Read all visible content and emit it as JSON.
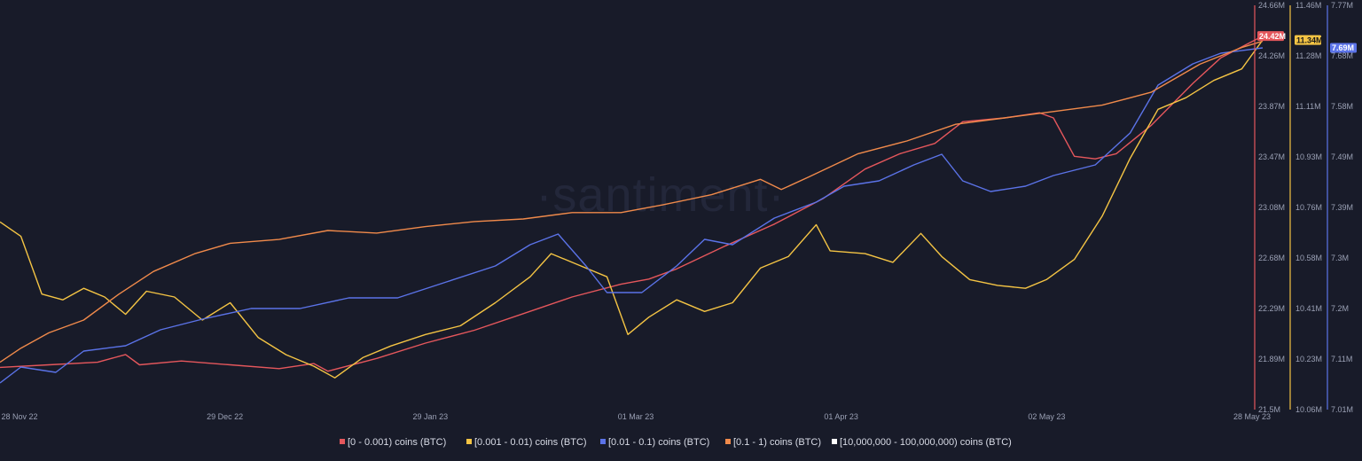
{
  "watermark": "·santiment·",
  "colors": {
    "background": "#181b29",
    "red": "#e5575c",
    "yellow": "#f4c444",
    "blue": "#5b73e8",
    "orange": "#f08a4b",
    "white": "#ffffff"
  },
  "chart_data": {
    "type": "line",
    "x_ticks": [
      "28 Nov 22",
      "29 Dec 22",
      "29 Jan 23",
      "01 Mar 23",
      "01 Apr 23",
      "02 May 23",
      "28 May 23"
    ],
    "x_range": [
      "2022-11-28",
      "2023-05-28"
    ],
    "axes": [
      {
        "id": "red",
        "color": "#e5575c",
        "ticks": [
          "24.66M",
          "24.26M",
          "23.87M",
          "23.47M",
          "23.08M",
          "22.68M",
          "22.29M",
          "21.89M",
          "21.5M"
        ],
        "range": [
          21.5,
          24.66
        ],
        "last_value_label": "24.42M"
      },
      {
        "id": "yellow",
        "color": "#f4c444",
        "ticks": [
          "11.46M",
          "11.28M",
          "11.11M",
          "10.93M",
          "10.76M",
          "10.58M",
          "10.41M",
          "10.23M",
          "10.06M"
        ],
        "range": [
          10.06,
          11.46
        ],
        "last_value_label": "11.34M"
      },
      {
        "id": "blue",
        "color": "#5b73e8",
        "ticks": [
          "7.77M",
          "7.68M",
          "7.58M",
          "7.49M",
          "7.39M",
          "7.3M",
          "7.2M",
          "7.11M",
          "7.01M"
        ],
        "range": [
          7.01,
          7.77
        ],
        "last_value_label": "7.69M"
      }
    ],
    "legend": [
      {
        "label": "[0 - 0.001) coins (BTC)",
        "color": "#e5575c"
      },
      {
        "label": "[0.001 - 0.01) coins (BTC)",
        "color": "#f4c444"
      },
      {
        "label": "[0.01 - 0.1) coins (BTC)",
        "color": "#5b73e8"
      },
      {
        "label": "[0.1 - 1) coins (BTC)",
        "color": "#f08a4b"
      },
      {
        "label": "[10,000,000 - 100,000,000) coins (BTC)",
        "color": "#ffffff"
      }
    ],
    "legend_placement": "bottom",
    "grid": false,
    "series": [
      {
        "name": "[0 - 0.001) coins (BTC)",
        "color": "#e5575c",
        "axis": "red",
        "points": [
          [
            "2022-11-28",
            21.83
          ],
          [
            "2022-12-05",
            21.85
          ],
          [
            "2022-12-12",
            21.87
          ],
          [
            "2022-12-16",
            21.93
          ],
          [
            "2022-12-18",
            21.85
          ],
          [
            "2022-12-24",
            21.88
          ],
          [
            "2022-12-31",
            21.85
          ],
          [
            "2023-01-07",
            21.82
          ],
          [
            "2023-01-12",
            21.86
          ],
          [
            "2023-01-14",
            21.8
          ],
          [
            "2023-01-21",
            21.9
          ],
          [
            "2023-01-28",
            22.02
          ],
          [
            "2023-02-04",
            22.12
          ],
          [
            "2023-02-11",
            22.25
          ],
          [
            "2023-02-18",
            22.38
          ],
          [
            "2023-02-25",
            22.48
          ],
          [
            "2023-03-01",
            22.52
          ],
          [
            "2023-03-05",
            22.6
          ],
          [
            "2023-03-12",
            22.78
          ],
          [
            "2023-03-19",
            22.95
          ],
          [
            "2023-03-26",
            23.15
          ],
          [
            "2023-04-01",
            23.38
          ],
          [
            "2023-04-06",
            23.5
          ],
          [
            "2023-04-11",
            23.58
          ],
          [
            "2023-04-15",
            23.75
          ],
          [
            "2023-04-21",
            23.78
          ],
          [
            "2023-04-26",
            23.82
          ],
          [
            "2023-04-28",
            23.78
          ],
          [
            "2023-05-01",
            23.48
          ],
          [
            "2023-05-04",
            23.46
          ],
          [
            "2023-05-07",
            23.5
          ],
          [
            "2023-05-12",
            23.72
          ],
          [
            "2023-05-18",
            24.05
          ],
          [
            "2023-05-22",
            24.25
          ],
          [
            "2023-05-28",
            24.42
          ]
        ]
      },
      {
        "name": "[0.001 - 0.01) coins (BTC)",
        "color": "#f4c444",
        "axis": "yellow",
        "points": [
          [
            "2022-11-28",
            10.71
          ],
          [
            "2022-12-01",
            10.66
          ],
          [
            "2022-12-04",
            10.46
          ],
          [
            "2022-12-07",
            10.44
          ],
          [
            "2022-12-10",
            10.48
          ],
          [
            "2022-12-13",
            10.45
          ],
          [
            "2022-12-16",
            10.39
          ],
          [
            "2022-12-19",
            10.47
          ],
          [
            "2022-12-23",
            10.45
          ],
          [
            "2022-12-27",
            10.37
          ],
          [
            "2022-12-31",
            10.43
          ],
          [
            "2023-01-04",
            10.31
          ],
          [
            "2023-01-08",
            10.25
          ],
          [
            "2023-01-12",
            10.21
          ],
          [
            "2023-01-15",
            10.17
          ],
          [
            "2023-01-19",
            10.24
          ],
          [
            "2023-01-23",
            10.28
          ],
          [
            "2023-01-28",
            10.32
          ],
          [
            "2023-02-02",
            10.35
          ],
          [
            "2023-02-07",
            10.43
          ],
          [
            "2023-02-12",
            10.52
          ],
          [
            "2023-02-15",
            10.6
          ],
          [
            "2023-02-19",
            10.56
          ],
          [
            "2023-02-23",
            10.52
          ],
          [
            "2023-02-26",
            10.32
          ],
          [
            "2023-03-01",
            10.38
          ],
          [
            "2023-03-05",
            10.44
          ],
          [
            "2023-03-09",
            10.4
          ],
          [
            "2023-03-13",
            10.43
          ],
          [
            "2023-03-17",
            10.55
          ],
          [
            "2023-03-21",
            10.59
          ],
          [
            "2023-03-25",
            10.7
          ],
          [
            "2023-03-27",
            10.61
          ],
          [
            "2023-04-01",
            10.6
          ],
          [
            "2023-04-05",
            10.57
          ],
          [
            "2023-04-09",
            10.67
          ],
          [
            "2023-04-12",
            10.59
          ],
          [
            "2023-04-16",
            10.51
          ],
          [
            "2023-04-20",
            10.49
          ],
          [
            "2023-04-24",
            10.48
          ],
          [
            "2023-04-27",
            10.51
          ],
          [
            "2023-05-01",
            10.58
          ],
          [
            "2023-05-05",
            10.73
          ],
          [
            "2023-05-09",
            10.93
          ],
          [
            "2023-05-13",
            11.1
          ],
          [
            "2023-05-17",
            11.14
          ],
          [
            "2023-05-21",
            11.2
          ],
          [
            "2023-05-25",
            11.24
          ],
          [
            "2023-05-28",
            11.34
          ]
        ]
      },
      {
        "name": "[0.01 - 0.1) coins (BTC)",
        "color": "#5b73e8",
        "axis": "blue",
        "points": [
          [
            "2022-11-28",
            7.06
          ],
          [
            "2022-12-01",
            7.09
          ],
          [
            "2022-12-06",
            7.08
          ],
          [
            "2022-12-10",
            7.12
          ],
          [
            "2022-12-16",
            7.13
          ],
          [
            "2022-12-21",
            7.16
          ],
          [
            "2022-12-27",
            7.18
          ],
          [
            "2023-01-03",
            7.2
          ],
          [
            "2023-01-10",
            7.2
          ],
          [
            "2023-01-17",
            7.22
          ],
          [
            "2023-01-24",
            7.22
          ],
          [
            "2023-01-31",
            7.25
          ],
          [
            "2023-02-07",
            7.28
          ],
          [
            "2023-02-12",
            7.32
          ],
          [
            "2023-02-16",
            7.34
          ],
          [
            "2023-02-20",
            7.28
          ],
          [
            "2023-02-23",
            7.23
          ],
          [
            "2023-02-28",
            7.23
          ],
          [
            "2023-03-05",
            7.28
          ],
          [
            "2023-03-09",
            7.33
          ],
          [
            "2023-03-13",
            7.32
          ],
          [
            "2023-03-19",
            7.37
          ],
          [
            "2023-03-25",
            7.4
          ],
          [
            "2023-03-29",
            7.43
          ],
          [
            "2023-04-03",
            7.44
          ],
          [
            "2023-04-08",
            7.47
          ],
          [
            "2023-04-12",
            7.49
          ],
          [
            "2023-04-15",
            7.44
          ],
          [
            "2023-04-19",
            7.42
          ],
          [
            "2023-04-24",
            7.43
          ],
          [
            "2023-04-28",
            7.45
          ],
          [
            "2023-05-01",
            7.46
          ],
          [
            "2023-05-04",
            7.47
          ],
          [
            "2023-05-09",
            7.53
          ],
          [
            "2023-05-13",
            7.62
          ],
          [
            "2023-05-18",
            7.66
          ],
          [
            "2023-05-22",
            7.68
          ],
          [
            "2023-05-28",
            7.69
          ]
        ]
      },
      {
        "name": "[0.1 - 1) coins (BTC)",
        "color": "#f08a4b",
        "axis": "red",
        "points": [
          [
            "2022-11-28",
            21.87
          ],
          [
            "2022-12-01",
            21.98
          ],
          [
            "2022-12-05",
            22.1
          ],
          [
            "2022-12-10",
            22.2
          ],
          [
            "2022-12-15",
            22.4
          ],
          [
            "2022-12-20",
            22.58
          ],
          [
            "2022-12-26",
            22.72
          ],
          [
            "2022-12-31",
            22.8
          ],
          [
            "2023-01-07",
            22.83
          ],
          [
            "2023-01-14",
            22.9
          ],
          [
            "2023-01-21",
            22.88
          ],
          [
            "2023-01-28",
            22.93
          ],
          [
            "2023-02-04",
            22.97
          ],
          [
            "2023-02-11",
            22.99
          ],
          [
            "2023-02-18",
            23.04
          ],
          [
            "2023-02-25",
            23.04
          ],
          [
            "2023-03-03",
            23.1
          ],
          [
            "2023-03-10",
            23.18
          ],
          [
            "2023-03-17",
            23.3
          ],
          [
            "2023-03-20",
            23.22
          ],
          [
            "2023-03-24",
            23.32
          ],
          [
            "2023-03-31",
            23.5
          ],
          [
            "2023-04-07",
            23.6
          ],
          [
            "2023-04-14",
            23.73
          ],
          [
            "2023-04-21",
            23.78
          ],
          [
            "2023-04-28",
            23.83
          ],
          [
            "2023-05-05",
            23.88
          ],
          [
            "2023-05-12",
            23.98
          ],
          [
            "2023-05-19",
            24.2
          ],
          [
            "2023-05-25",
            24.33
          ],
          [
            "2023-05-28",
            24.38
          ]
        ]
      },
      {
        "name": "[10,000,000 - 100,000,000) coins (BTC)",
        "color": "#ffffff",
        "axis": "red",
        "points": []
      }
    ]
  }
}
